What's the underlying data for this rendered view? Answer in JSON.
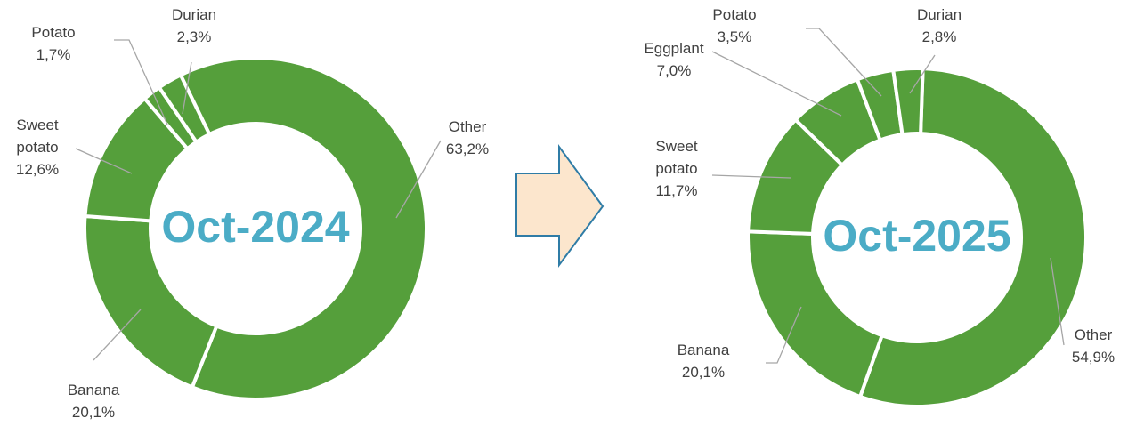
{
  "chart_data": [
    {
      "type": "donut",
      "title": "Oct-2024",
      "color": "#559f3b",
      "categories": [
        "Other",
        "Banana",
        "Sweet potato",
        "Potato",
        "Durian"
      ],
      "values": [
        63.2,
        20.1,
        12.6,
        1.7,
        2.3
      ],
      "value_labels": [
        "63,2%",
        "20,1%",
        "12,6%",
        "1,7%",
        "2,3%"
      ]
    },
    {
      "type": "donut",
      "title": "Oct-2025",
      "color": "#559f3b",
      "categories": [
        "Other",
        "Banana",
        "Sweet potato",
        "Eggplant",
        "Potato",
        "Durian"
      ],
      "values": [
        54.9,
        20.1,
        11.7,
        7.0,
        3.5,
        2.8
      ],
      "value_labels": [
        "54,9%",
        "20,1%",
        "11,7%",
        "7,0%",
        "3,5%",
        "2,8%"
      ]
    }
  ]
}
